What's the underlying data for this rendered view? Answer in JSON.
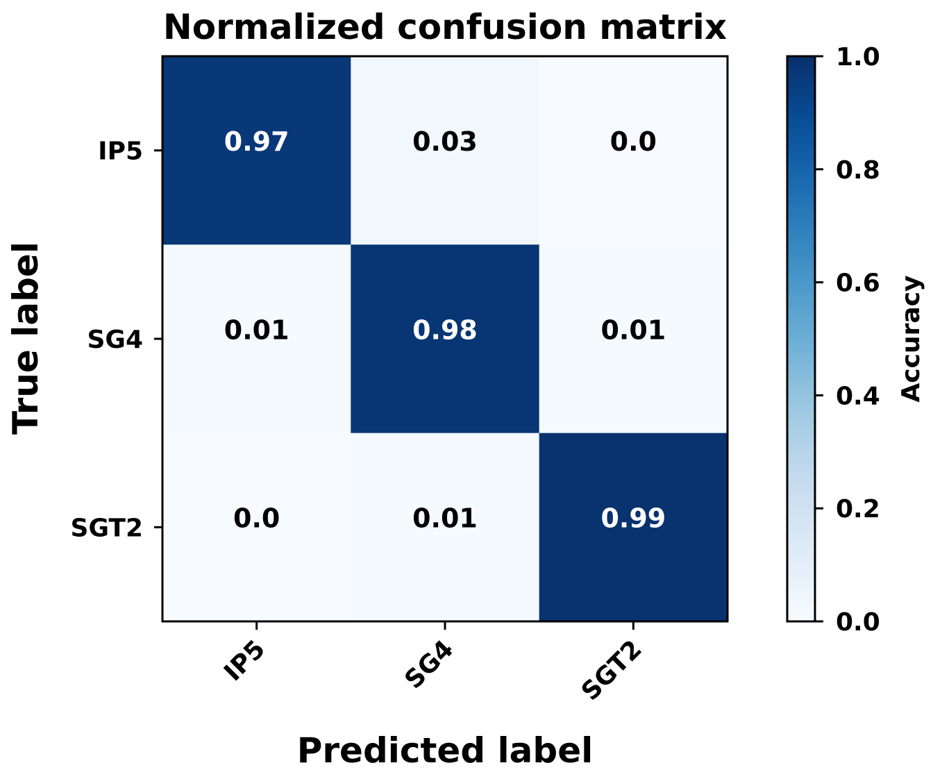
{
  "chart_data": {
    "type": "heatmap",
    "title": "Normalized confusion matrix",
    "xlabel": "Predicted label",
    "ylabel": "True label",
    "x_categories": [
      "IP5",
      "SG4",
      "SGT2"
    ],
    "y_categories": [
      "IP5",
      "SG4",
      "SGT2"
    ],
    "values": [
      [
        0.97,
        0.03,
        0.0
      ],
      [
        0.01,
        0.98,
        0.01
      ],
      [
        0.0,
        0.01,
        0.99
      ]
    ],
    "value_labels": [
      [
        "0.97",
        "0.03",
        "0.0"
      ],
      [
        "0.01",
        "0.98",
        "0.01"
      ],
      [
        "0.0",
        "0.01",
        "0.99"
      ]
    ],
    "colormap": "Blues",
    "colorbar": {
      "label": "Accuracy",
      "range": [
        0.0,
        1.0
      ],
      "ticks": [
        0.0,
        0.2,
        0.4,
        0.6,
        0.8,
        1.0
      ],
      "tick_labels": [
        "0.0",
        "0.2",
        "0.4",
        "0.6",
        "0.8",
        "1.0"
      ]
    },
    "colors": {
      "low": "#f7fbff",
      "high": "#08306b",
      "text_dark": "#000000",
      "text_light": "#ffffff"
    }
  }
}
